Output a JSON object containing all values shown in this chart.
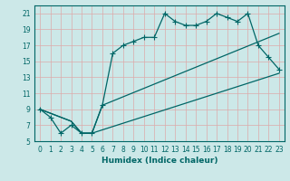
{
  "xlabel": "Humidex (Indice chaleur)",
  "background_color": "#cce8e8",
  "grid_color": "#aacccc",
  "line_color": "#006666",
  "xlim": [
    -0.5,
    23.5
  ],
  "ylim": [
    5,
    22
  ],
  "xticks": [
    0,
    1,
    2,
    3,
    4,
    5,
    6,
    7,
    8,
    9,
    10,
    11,
    12,
    13,
    14,
    15,
    16,
    17,
    18,
    19,
    20,
    21,
    22,
    23
  ],
  "yticks": [
    5,
    7,
    9,
    11,
    13,
    15,
    17,
    19,
    21
  ],
  "line1_x": [
    0,
    1,
    2,
    3,
    4,
    5,
    6,
    7,
    8,
    9,
    10,
    11,
    12,
    13,
    14,
    15,
    16,
    17,
    18,
    19,
    20,
    21,
    22,
    23
  ],
  "line1_y": [
    9,
    8,
    6,
    7,
    6,
    6,
    9.5,
    16,
    17,
    17.5,
    18,
    18,
    21,
    20,
    19.5,
    19.5,
    20,
    21,
    20.5,
    20,
    21,
    17,
    15.5,
    14
  ],
  "line2_x": [
    0,
    3,
    4,
    5,
    23
  ],
  "line2_y": [
    9,
    7.5,
    6,
    6,
    13.5
  ],
  "line3_x": [
    0,
    3,
    4,
    5,
    6,
    23
  ],
  "line3_y": [
    9,
    7.5,
    6,
    6,
    9.5,
    18.5
  ]
}
